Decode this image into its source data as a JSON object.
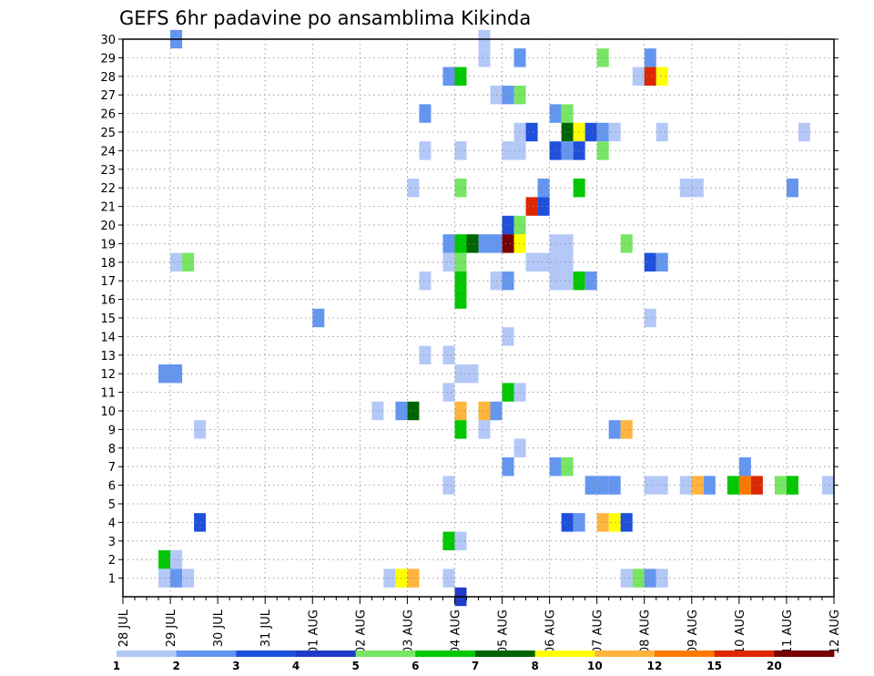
{
  "chart_data": {
    "type": "heatmap",
    "title": "GEFS 6hr padavine po ansamblima Kikinda",
    "xlabel": "",
    "ylabel": "",
    "x_tick_labels": [
      "28 JUL",
      "29 JUL",
      "30 JUL",
      "31 JUL",
      "01 AUG",
      "02 AUG",
      "03 AUG",
      "04 AUG",
      "05 AUG",
      "06 AUG",
      "07 AUG",
      "08 AUG",
      "09 AUG",
      "10 AUG",
      "11 AUG",
      "12 AUG"
    ],
    "y_tick_labels": [
      "1",
      "2",
      "3",
      "4",
      "5",
      "6",
      "7",
      "8",
      "9",
      "10",
      "11",
      "12",
      "13",
      "14",
      "15",
      "16",
      "17",
      "18",
      "19",
      "20",
      "21",
      "22",
      "23",
      "24",
      "25",
      "26",
      "27",
      "28",
      "29",
      "30"
    ],
    "xlim": [
      0,
      60
    ],
    "ylim": [
      0,
      30
    ],
    "x_unit": "6-hour step from 28 JUL 00z",
    "y_unit": "ensemble member",
    "grid": true,
    "colorbar": {
      "labels": [
        "1",
        "2",
        "3",
        "4",
        "5",
        "6",
        "7",
        "8",
        "10",
        "12",
        "15",
        "20"
      ],
      "colors": [
        "#b4c8f8",
        "#6496f0",
        "#1e50dc",
        "#1e3cc8",
        "#78e664",
        "#00c800",
        "#006400",
        "#ffff00",
        "#ffb43c",
        "#ff7800",
        "#dc2800",
        "#780000"
      ]
    },
    "cells": [
      [
        4,
        30,
        1
      ],
      [
        30,
        30,
        0
      ],
      [
        30,
        29,
        0
      ],
      [
        33,
        29,
        1
      ],
      [
        40,
        29,
        4
      ],
      [
        44,
        29,
        1
      ],
      [
        27,
        28,
        1
      ],
      [
        28,
        28,
        5
      ],
      [
        43,
        28,
        0
      ],
      [
        44,
        28,
        10
      ],
      [
        45,
        28,
        7
      ],
      [
        31,
        27,
        0
      ],
      [
        32,
        27,
        1
      ],
      [
        33,
        27,
        4
      ],
      [
        25,
        26,
        1
      ],
      [
        36,
        26,
        1
      ],
      [
        37,
        26,
        4
      ],
      [
        33,
        25,
        0
      ],
      [
        34,
        25,
        2
      ],
      [
        37,
        25,
        6
      ],
      [
        38,
        25,
        7
      ],
      [
        39,
        25,
        2
      ],
      [
        40,
        25,
        1
      ],
      [
        41,
        25,
        0
      ],
      [
        45,
        25,
        0
      ],
      [
        57,
        25,
        0
      ],
      [
        25,
        24,
        0
      ],
      [
        28,
        24,
        0
      ],
      [
        32,
        24,
        0
      ],
      [
        33,
        24,
        0
      ],
      [
        36,
        24,
        2
      ],
      [
        37,
        24,
        1
      ],
      [
        38,
        24,
        2
      ],
      [
        40,
        24,
        4
      ],
      [
        24,
        22,
        0
      ],
      [
        28,
        22,
        4
      ],
      [
        35,
        22,
        1
      ],
      [
        38,
        22,
        5
      ],
      [
        47,
        22,
        0
      ],
      [
        48,
        22,
        0
      ],
      [
        56,
        22,
        1
      ],
      [
        34,
        21,
        10
      ],
      [
        35,
        21,
        2
      ],
      [
        32,
        20,
        2
      ],
      [
        33,
        20,
        4
      ],
      [
        27,
        19,
        1
      ],
      [
        28,
        19,
        5
      ],
      [
        29,
        19,
        6
      ],
      [
        30,
        19,
        1
      ],
      [
        31,
        19,
        1
      ],
      [
        32,
        19,
        11
      ],
      [
        33,
        19,
        7
      ],
      [
        36,
        19,
        0
      ],
      [
        37,
        19,
        0
      ],
      [
        42,
        19,
        4
      ],
      [
        4,
        18,
        0
      ],
      [
        5,
        18,
        4
      ],
      [
        27,
        18,
        0
      ],
      [
        28,
        18,
        4
      ],
      [
        34,
        18,
        0
      ],
      [
        35,
        18,
        0
      ],
      [
        36,
        18,
        0
      ],
      [
        37,
        18,
        0
      ],
      [
        44,
        18,
        2
      ],
      [
        45,
        18,
        1
      ],
      [
        25,
        17,
        0
      ],
      [
        28,
        17,
        5
      ],
      [
        31,
        17,
        0
      ],
      [
        32,
        17,
        1
      ],
      [
        36,
        17,
        0
      ],
      [
        37,
        17,
        0
      ],
      [
        38,
        17,
        5
      ],
      [
        39,
        17,
        1
      ],
      [
        28,
        16,
        5
      ],
      [
        16,
        15,
        1
      ],
      [
        44,
        15,
        0
      ],
      [
        32,
        14,
        0
      ],
      [
        25,
        13,
        0
      ],
      [
        27,
        13,
        0
      ],
      [
        3,
        12,
        1
      ],
      [
        4,
        12,
        1
      ],
      [
        28,
        12,
        0
      ],
      [
        29,
        12,
        0
      ],
      [
        27,
        11,
        0
      ],
      [
        32,
        11,
        5
      ],
      [
        33,
        11,
        0
      ],
      [
        21,
        10,
        0
      ],
      [
        23,
        10,
        1
      ],
      [
        24,
        10,
        6
      ],
      [
        28,
        10,
        8
      ],
      [
        30,
        10,
        8
      ],
      [
        31,
        10,
        1
      ],
      [
        6,
        9,
        0
      ],
      [
        28,
        9,
        5
      ],
      [
        30,
        9,
        0
      ],
      [
        41,
        9,
        1
      ],
      [
        42,
        9,
        8
      ],
      [
        33,
        8,
        0
      ],
      [
        32,
        7,
        1
      ],
      [
        36,
        7,
        1
      ],
      [
        37,
        7,
        4
      ],
      [
        52,
        7,
        1
      ],
      [
        27,
        6,
        0
      ],
      [
        39,
        6,
        1
      ],
      [
        40,
        6,
        1
      ],
      [
        41,
        6,
        1
      ],
      [
        44,
        6,
        0
      ],
      [
        45,
        6,
        0
      ],
      [
        47,
        6,
        0
      ],
      [
        48,
        6,
        8
      ],
      [
        49,
        6,
        1
      ],
      [
        51,
        6,
        5
      ],
      [
        52,
        6,
        9
      ],
      [
        53,
        6,
        10
      ],
      [
        55,
        6,
        4
      ],
      [
        56,
        6,
        5
      ],
      [
        59,
        6,
        0
      ],
      [
        6,
        4,
        2
      ],
      [
        37,
        4,
        2
      ],
      [
        38,
        4,
        1
      ],
      [
        40,
        4,
        8
      ],
      [
        41,
        4,
        7
      ],
      [
        42,
        4,
        2
      ],
      [
        27,
        3,
        5
      ],
      [
        28,
        3,
        0
      ],
      [
        3,
        2,
        5
      ],
      [
        4,
        2,
        0
      ],
      [
        3,
        1,
        0
      ],
      [
        4,
        1,
        1
      ],
      [
        5,
        1,
        0
      ],
      [
        22,
        1,
        0
      ],
      [
        23,
        1,
        7
      ],
      [
        24,
        1,
        8
      ],
      [
        27,
        1,
        0
      ],
      [
        42,
        1,
        0
      ],
      [
        43,
        1,
        4
      ],
      [
        44,
        1,
        1
      ],
      [
        45,
        1,
        0
      ],
      [
        28,
        0,
        3
      ]
    ]
  }
}
